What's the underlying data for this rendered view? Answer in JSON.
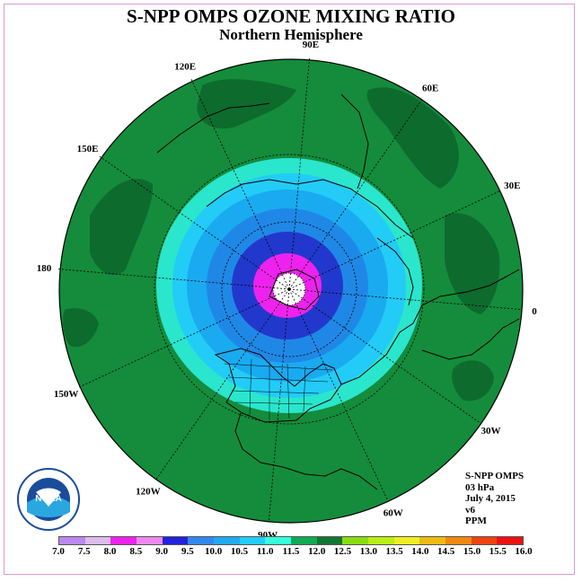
{
  "title": "S-NPP OMPS OZONE MIXING RATIO",
  "subtitle": "Northern Hemisphere",
  "meridian_labels": [
    {
      "name": "lon-label-0",
      "text": "0"
    },
    {
      "name": "lon-label-30e",
      "text": "30E"
    },
    {
      "name": "lon-label-60e",
      "text": "60E"
    },
    {
      "name": "lon-label-90e",
      "text": "90E"
    },
    {
      "name": "lon-label-120e",
      "text": "120E"
    },
    {
      "name": "lon-label-150e",
      "text": "150E"
    },
    {
      "name": "lon-label-180",
      "text": "180"
    },
    {
      "name": "lon-label-150w",
      "text": "150W"
    },
    {
      "name": "lon-label-120w",
      "text": "120W"
    },
    {
      "name": "lon-label-90w",
      "text": "90W"
    },
    {
      "name": "lon-label-60w",
      "text": "60W"
    },
    {
      "name": "lon-label-30w",
      "text": "30W"
    }
  ],
  "info": {
    "instrument": "S-NPP OMPS",
    "level": "03 hPa",
    "date": "July 4, 2015",
    "version": "v6",
    "units": "PPM"
  },
  "logo": {
    "text": "NOAA"
  },
  "colorbar": {
    "ticks": [
      "7.0",
      "7.5",
      "8.0",
      "8.5",
      "9.0",
      "9.5",
      "10.0",
      "10.5",
      "11.0",
      "11.5",
      "12.0",
      "12.5",
      "13.0",
      "13.5",
      "14.0",
      "14.5",
      "15.0",
      "15.5",
      "16.0"
    ],
    "colors": [
      "#bb88ee",
      "#ddbbee",
      "#ee22ee",
      "#ee88ee",
      "#2222dd",
      "#3388ee",
      "#22aaee",
      "#22ccff",
      "#33ffdd",
      "#11aa55",
      "#117733",
      "#88dd11",
      "#bbee11",
      "#eeee22",
      "#eebb11",
      "#ee8811",
      "#ee4411",
      "#ee1111",
      "#885533"
    ]
  },
  "field": {
    "background_level": "11.5",
    "levels": [
      "11.0",
      "10.5",
      "10.0",
      "9.5",
      "9.0",
      "8.5",
      "8.0"
    ],
    "level_colors": {
      "11.5": "#148c3c",
      "11.0": "#2ae6cc",
      "10.5": "#22ccf6",
      "10.0": "#1aaaf0",
      "9.5": "#1f88e6",
      "9.0": "#2238cc",
      "8.5": "#ee22ee",
      "8.0": "#ffffff"
    }
  }
}
